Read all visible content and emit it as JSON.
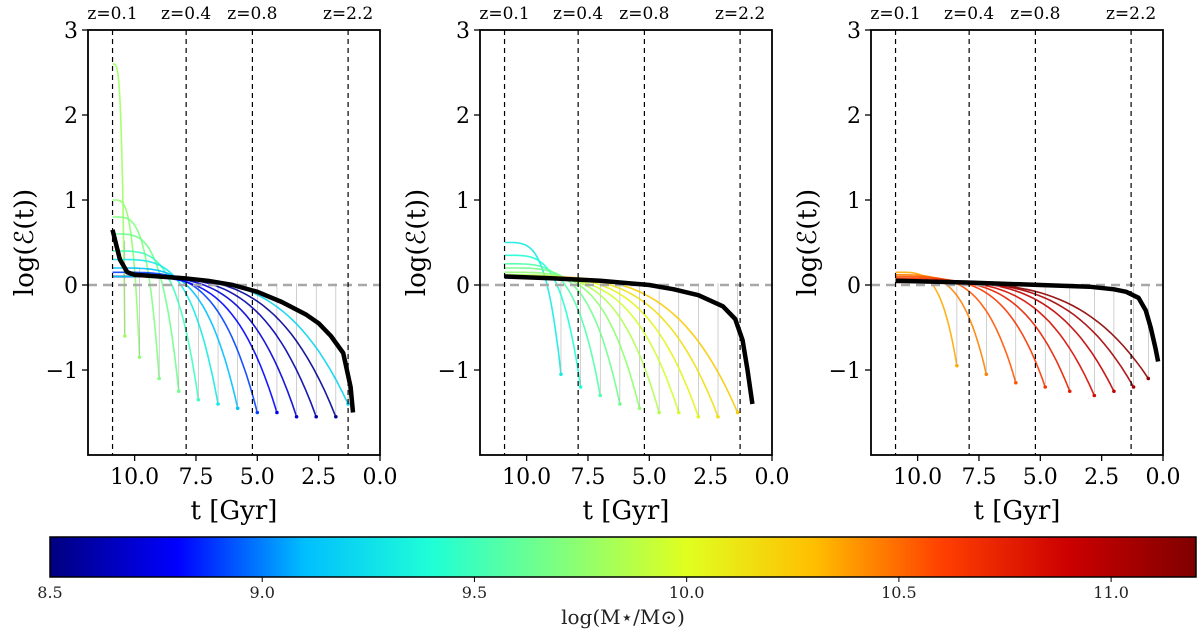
{
  "chart_data": [
    {
      "type": "line",
      "panel": "left",
      "xlabel": "t [Gyr]",
      "ylabel": "log(ℰ(t))",
      "xlim": [
        11.9,
        0.0
      ],
      "ylim": [
        -2.0,
        3.0
      ],
      "xticks": [
        10.0,
        7.5,
        5.0,
        2.5,
        0.0
      ],
      "xtick_labels": [
        "10.0",
        "7.5",
        "5.0",
        "2.5",
        "0.0"
      ],
      "yticks": [
        -1,
        0,
        1,
        2,
        3
      ],
      "ytick_labels": [
        "−1",
        "0",
        "1",
        "2",
        "3"
      ],
      "reference_line_y": 0,
      "redshift_lines": [
        {
          "label": "z=0.1",
          "t": 10.9
        },
        {
          "label": "z=0.4",
          "t": 7.9
        },
        {
          "label": "z=0.8",
          "t": 5.2
        },
        {
          "label": "z=2.2",
          "t": 1.3
        }
      ],
      "mass_range": [
        8.5,
        9.8
      ],
      "median_line": {
        "t": [
          10.9,
          10.6,
          10.3,
          10.0,
          9.0,
          8.0,
          7.0,
          6.0,
          5.0,
          4.0,
          3.0,
          2.5,
          2.0,
          1.5,
          1.2,
          1.1
        ],
        "y": [
          0.65,
          0.3,
          0.15,
          0.12,
          0.1,
          0.08,
          0.05,
          0.0,
          -0.08,
          -0.2,
          -0.35,
          -0.45,
          -0.6,
          -0.8,
          -1.2,
          -1.5
        ]
      },
      "tracks": [
        {
          "t0": 10.9,
          "y0": 2.6,
          "t_end": 10.4,
          "y_end": -0.6,
          "mass": 9.8
        },
        {
          "t0": 10.9,
          "y0": 1.0,
          "t_end": 9.8,
          "y_end": -0.85,
          "mass": 9.75
        },
        {
          "t0": 10.9,
          "y0": 0.8,
          "t_end": 9.0,
          "y_end": -1.1,
          "mass": 9.7
        },
        {
          "t0": 10.9,
          "y0": 0.6,
          "t_end": 8.2,
          "y_end": -1.25,
          "mass": 9.65
        },
        {
          "t0": 10.9,
          "y0": 0.4,
          "t_end": 7.4,
          "y_end": -1.35,
          "mass": 9.5
        },
        {
          "t0": 10.9,
          "y0": 0.3,
          "t_end": 6.6,
          "y_end": -1.4,
          "mass": 9.3
        },
        {
          "t0": 10.9,
          "y0": 0.2,
          "t_end": 5.8,
          "y_end": -1.45,
          "mass": 9.1
        },
        {
          "t0": 10.9,
          "y0": 0.15,
          "t_end": 5.0,
          "y_end": -1.5,
          "mass": 8.9
        },
        {
          "t0": 10.9,
          "y0": 0.1,
          "t_end": 4.2,
          "y_end": -1.5,
          "mass": 8.8
        },
        {
          "t0": 10.9,
          "y0": 0.1,
          "t_end": 3.4,
          "y_end": -1.55,
          "mass": 8.7
        },
        {
          "t0": 10.9,
          "y0": 0.1,
          "t_end": 2.6,
          "y_end": -1.55,
          "mass": 8.6
        },
        {
          "t0": 10.9,
          "y0": 0.1,
          "t_end": 1.8,
          "y_end": -1.55,
          "mass": 8.55
        },
        {
          "t0": 10.9,
          "y0": 0.1,
          "t_end": 1.3,
          "y_end": -1.4,
          "mass": 9.2
        }
      ]
    },
    {
      "type": "line",
      "panel": "middle",
      "xlabel": "t [Gyr]",
      "ylabel": "log(ℰ(t))",
      "xlim": [
        11.9,
        0.0
      ],
      "ylim": [
        -2.0,
        3.0
      ],
      "xticks": [
        10.0,
        7.5,
        5.0,
        2.5,
        0.0
      ],
      "xtick_labels": [
        "10.0",
        "7.5",
        "5.0",
        "2.5",
        "0.0"
      ],
      "yticks": [
        -1,
        0,
        1,
        2,
        3
      ],
      "ytick_labels": [
        "−1",
        "0",
        "1",
        "2",
        "3"
      ],
      "reference_line_y": 0,
      "redshift_lines": [
        {
          "label": "z=0.1",
          "t": 10.9
        },
        {
          "label": "z=0.4",
          "t": 7.9
        },
        {
          "label": "z=0.8",
          "t": 5.2
        },
        {
          "label": "z=2.2",
          "t": 1.3
        }
      ],
      "mass_range": [
        9.3,
        10.3
      ],
      "median_line": {
        "t": [
          10.9,
          9.0,
          7.0,
          5.0,
          4.0,
          3.0,
          2.0,
          1.5,
          1.2,
          1.0,
          0.8
        ],
        "y": [
          0.1,
          0.08,
          0.05,
          0.0,
          -0.05,
          -0.12,
          -0.25,
          -0.4,
          -0.65,
          -1.0,
          -1.4
        ]
      },
      "tracks": [
        {
          "t0": 10.9,
          "y0": 0.5,
          "t_end": 8.6,
          "y_end": -1.05,
          "mass": 9.3
        },
        {
          "t0": 10.9,
          "y0": 0.35,
          "t_end": 7.8,
          "y_end": -1.2,
          "mass": 9.4
        },
        {
          "t0": 10.9,
          "y0": 0.25,
          "t_end": 7.0,
          "y_end": -1.3,
          "mass": 9.55
        },
        {
          "t0": 10.9,
          "y0": 0.2,
          "t_end": 6.2,
          "y_end": -1.4,
          "mass": 9.65
        },
        {
          "t0": 10.9,
          "y0": 0.15,
          "t_end": 5.4,
          "y_end": -1.45,
          "mass": 9.75
        },
        {
          "t0": 10.9,
          "y0": 0.12,
          "t_end": 4.6,
          "y_end": -1.5,
          "mass": 9.85
        },
        {
          "t0": 10.9,
          "y0": 0.1,
          "t_end": 3.8,
          "y_end": -1.5,
          "mass": 9.95
        },
        {
          "t0": 10.9,
          "y0": 0.1,
          "t_end": 3.0,
          "y_end": -1.55,
          "mass": 10.05
        },
        {
          "t0": 10.9,
          "y0": 0.1,
          "t_end": 2.2,
          "y_end": -1.55,
          "mass": 10.15
        },
        {
          "t0": 10.9,
          "y0": 0.1,
          "t_end": 1.4,
          "y_end": -1.5,
          "mass": 10.25
        }
      ]
    },
    {
      "type": "line",
      "panel": "right",
      "xlabel": "t [Gyr]",
      "ylabel": "log(ℰ(t))",
      "xlim": [
        11.9,
        0.0
      ],
      "ylim": [
        -2.0,
        3.0
      ],
      "xticks": [
        10.0,
        7.5,
        5.0,
        2.5,
        0.0
      ],
      "xtick_labels": [
        "10.0",
        "7.5",
        "5.0",
        "2.5",
        "0.0"
      ],
      "yticks": [
        -1,
        0,
        1,
        2,
        3
      ],
      "ytick_labels": [
        "−1",
        "0",
        "1",
        "2",
        "3"
      ],
      "reference_line_y": 0,
      "redshift_lines": [
        {
          "label": "z=0.1",
          "t": 10.9
        },
        {
          "label": "z=0.4",
          "t": 7.9
        },
        {
          "label": "z=0.8",
          "t": 5.2
        },
        {
          "label": "z=2.2",
          "t": 1.3
        }
      ],
      "mass_range": [
        10.3,
        11.2
      ],
      "median_line": {
        "t": [
          10.9,
          8.0,
          5.0,
          3.0,
          2.0,
          1.5,
          1.0,
          0.7,
          0.5,
          0.3,
          0.2
        ],
        "y": [
          0.05,
          0.03,
          0.0,
          -0.02,
          -0.05,
          -0.08,
          -0.15,
          -0.3,
          -0.5,
          -0.75,
          -0.9
        ]
      },
      "tracks": [
        {
          "t0": 10.9,
          "y0": 0.15,
          "t_end": 8.4,
          "y_end": -0.95,
          "mass": 10.35
        },
        {
          "t0": 10.9,
          "y0": 0.12,
          "t_end": 7.2,
          "y_end": -1.05,
          "mass": 10.45
        },
        {
          "t0": 10.9,
          "y0": 0.1,
          "t_end": 6.0,
          "y_end": -1.15,
          "mass": 10.55
        },
        {
          "t0": 10.9,
          "y0": 0.08,
          "t_end": 4.8,
          "y_end": -1.2,
          "mass": 10.65
        },
        {
          "t0": 10.9,
          "y0": 0.06,
          "t_end": 3.8,
          "y_end": -1.25,
          "mass": 10.75
        },
        {
          "t0": 10.9,
          "y0": 0.05,
          "t_end": 2.8,
          "y_end": -1.3,
          "mass": 10.85
        },
        {
          "t0": 10.9,
          "y0": 0.05,
          "t_end": 2.0,
          "y_end": -1.25,
          "mass": 10.95
        },
        {
          "t0": 10.9,
          "y0": 0.04,
          "t_end": 1.2,
          "y_end": -1.2,
          "mass": 11.05
        },
        {
          "t0": 10.9,
          "y0": 0.03,
          "t_end": 0.6,
          "y_end": -1.1,
          "mass": 11.15
        }
      ]
    }
  ],
  "colorbar": {
    "label": "log(M⋆/M⊙)",
    "range": [
      8.5,
      11.2
    ],
    "ticks": [
      8.5,
      9.0,
      9.5,
      10.0,
      10.5,
      11.0
    ],
    "tick_labels": [
      "8.5",
      "9.0",
      "9.5",
      "10.0",
      "10.5",
      "11.0"
    ],
    "colormap": "jet",
    "stops": [
      "#00007f",
      "#0000ff",
      "#00bfff",
      "#1fffd6",
      "#7fff7f",
      "#e0ff1f",
      "#ffbf00",
      "#ff4000",
      "#cc0000",
      "#7f0000"
    ]
  }
}
